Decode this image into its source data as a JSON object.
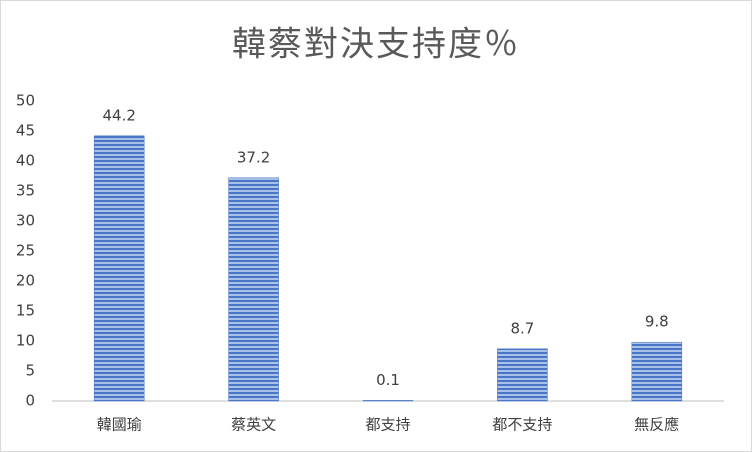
{
  "chart_data": {
    "type": "bar",
    "title": "韓蔡對決支持度％",
    "categories": [
      "韓國瑜",
      "蔡英文",
      "都支持",
      "都不支持",
      "無反應"
    ],
    "values": [
      44.2,
      37.2,
      0.1,
      8.7,
      9.8
    ],
    "color": "#4472c4",
    "ylim": [
      0,
      50
    ],
    "yticks": [
      0,
      5,
      10,
      15,
      20,
      25,
      30,
      35,
      40,
      45,
      50
    ],
    "grid": false
  }
}
